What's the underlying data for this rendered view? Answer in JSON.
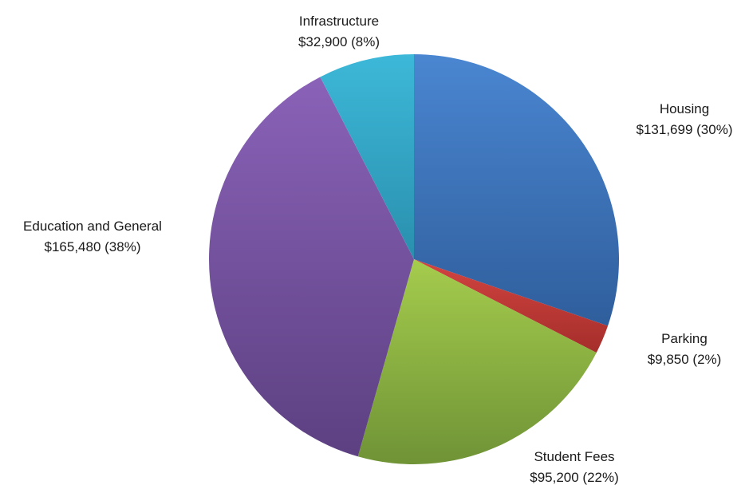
{
  "chart_data": {
    "type": "pie",
    "title": "",
    "start_angle_deg": 0,
    "direction": "clockwise",
    "slices": [
      {
        "label": "Housing",
        "value": 131699,
        "value_text": "$131,699",
        "percent_text": "(30%)",
        "color_light": "#4a86d1",
        "color_dark": "#2f5e9c"
      },
      {
        "label": "Parking",
        "value": 9850,
        "value_text": "$9,850",
        "percent_text": "(2%)",
        "color_light": "#d24440",
        "color_dark": "#a52e2b"
      },
      {
        "label": "Student Fees",
        "value": 95200,
        "value_text": "$95,200",
        "percent_text": "(22%)",
        "color_light": "#a5cc4d",
        "color_dark": "#6f9336"
      },
      {
        "label": "Education and General",
        "value": 165480,
        "value_text": "$165,480",
        "percent_text": "(38%)",
        "color_light": "#8a62b8",
        "color_dark": "#5c4081"
      },
      {
        "label": "Infrastructure",
        "value": 32900,
        "value_text": "$32,900",
        "percent_text": "(8%)",
        "color_light": "#3db8d8",
        "color_dark": "#2a8fae"
      }
    ],
    "legend": "none",
    "data_labels": "outside"
  }
}
